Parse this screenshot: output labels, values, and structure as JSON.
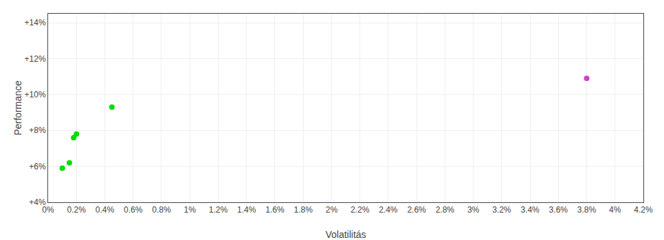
{
  "chart_data": {
    "type": "scatter",
    "xlabel": "Volatilitás",
    "ylabel": "Performance",
    "series": [
      {
        "color": "#00dd00",
        "marker": "circle",
        "x": [
          0.0015,
          0.001,
          0.002,
          0.0018,
          0.0045
        ],
        "values": [
          0.062,
          0.059,
          0.078,
          0.076,
          0.093
        ]
      },
      {
        "color": "#cc44cc",
        "marker": "circle",
        "x": [
          0.038
        ],
        "values": [
          0.109
        ]
      }
    ],
    "xlim": [
      0.0,
      0.042
    ],
    "ylim": [
      0.04,
      0.145
    ],
    "xticks": [
      {
        "value": 0.0,
        "label": "0%"
      },
      {
        "value": 0.002,
        "label": "0.2%"
      },
      {
        "value": 0.004,
        "label": "0.4%"
      },
      {
        "value": 0.006,
        "label": "0.6%"
      },
      {
        "value": 0.008,
        "label": "0.8%"
      },
      {
        "value": 0.01,
        "label": "1%"
      },
      {
        "value": 0.012,
        "label": "1.2%"
      },
      {
        "value": 0.014,
        "label": "1.4%"
      },
      {
        "value": 0.016,
        "label": "1.6%"
      },
      {
        "value": 0.018,
        "label": "1.8%"
      },
      {
        "value": 0.02,
        "label": "2%"
      },
      {
        "value": 0.022,
        "label": "2.2%"
      },
      {
        "value": 0.024,
        "label": "2.4%"
      },
      {
        "value": 0.026,
        "label": "2.6%"
      },
      {
        "value": 0.028,
        "label": "2.8%"
      },
      {
        "value": 0.03,
        "label": "3%"
      },
      {
        "value": 0.032,
        "label": "3.2%"
      },
      {
        "value": 0.034,
        "label": "3.4%"
      },
      {
        "value": 0.036,
        "label": "3.6%"
      },
      {
        "value": 0.038,
        "label": "3.8%"
      },
      {
        "value": 0.04,
        "label": "4%"
      },
      {
        "value": 0.042,
        "label": "4.2%"
      }
    ],
    "yticks": [
      {
        "value": 0.04,
        "label": "+4%"
      },
      {
        "value": 0.06,
        "label": "+6%"
      },
      {
        "value": 0.08,
        "label": "+8%"
      },
      {
        "value": 0.1,
        "label": "+10%"
      },
      {
        "value": 0.12,
        "label": "+12%"
      },
      {
        "value": 0.14,
        "label": "+14%"
      }
    ],
    "grid": true
  }
}
